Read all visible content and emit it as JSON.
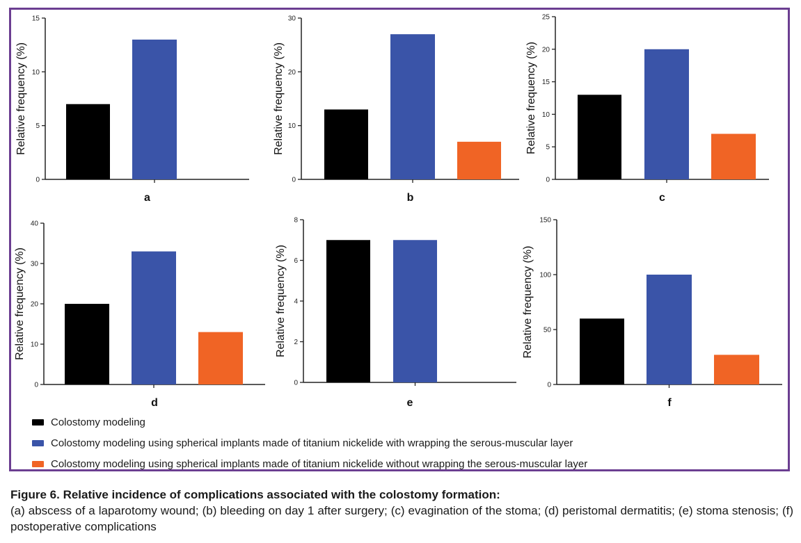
{
  "colors": {
    "frame": "#6b3e91",
    "colostomy": "#000000",
    "with_wrap": "#3a54a8",
    "without_wrap": "#f06425"
  },
  "chart_data": [
    {
      "type": "bar",
      "panel": "a",
      "ylabel": "Relative frequency (%)",
      "xlabel": "a",
      "ylim": [
        0,
        15
      ],
      "yticks": [
        0,
        5,
        10,
        15
      ],
      "categories": [
        "Colostomy modeling",
        "Colostomy modeling using spherical implants made of titanium nickelide with wrapping the serous-muscular layer",
        "Colostomy modeling using spherical implants made of titanium nickelide without wrapping the serous-muscular layer"
      ],
      "values": [
        7,
        13,
        0
      ]
    },
    {
      "type": "bar",
      "panel": "b",
      "ylabel": "Relative frequency (%)",
      "xlabel": "b",
      "ylim": [
        0,
        30
      ],
      "yticks": [
        0,
        10,
        20,
        30
      ],
      "categories": [
        "Colostomy modeling",
        "Colostomy modeling using spherical implants made of titanium nickelide with wrapping the serous-muscular layer",
        "Colostomy modeling using spherical implants made of titanium nickelide without wrapping the serous-muscular layer"
      ],
      "values": [
        13,
        27,
        7
      ]
    },
    {
      "type": "bar",
      "panel": "c",
      "ylabel": "Relative frequency (%)",
      "xlabel": "c",
      "ylim": [
        0,
        25
      ],
      "yticks": [
        0,
        5,
        10,
        15,
        20,
        25
      ],
      "categories": [
        "Colostomy modeling",
        "Colostomy modeling using spherical implants made of titanium nickelide with wrapping the serous-muscular layer",
        "Colostomy modeling using spherical implants made of titanium nickelide without wrapping the serous-muscular layer"
      ],
      "values": [
        13,
        20,
        7
      ]
    },
    {
      "type": "bar",
      "panel": "d",
      "ylabel": "Relative frequency (%)",
      "xlabel": "d",
      "ylim": [
        0,
        40
      ],
      "yticks": [
        0,
        10,
        20,
        30,
        40
      ],
      "categories": [
        "Colostomy modeling",
        "Colostomy modeling using spherical implants made of titanium nickelide with wrapping the serous-muscular layer",
        "Colostomy modeling using spherical implants made of titanium nickelide without wrapping the serous-muscular layer"
      ],
      "values": [
        20,
        33,
        13
      ]
    },
    {
      "type": "bar",
      "panel": "e",
      "ylabel": "Relative frequency (%)",
      "xlabel": "e",
      "ylim": [
        0,
        8
      ],
      "yticks": [
        0,
        2,
        4,
        6,
        8
      ],
      "categories": [
        "Colostomy modeling",
        "Colostomy modeling using spherical implants made of titanium nickelide with wrapping the serous-muscular layer",
        "Colostomy modeling using spherical implants made of titanium nickelide without wrapping the serous-muscular layer"
      ],
      "values": [
        7,
        7,
        0
      ]
    },
    {
      "type": "bar",
      "panel": "f",
      "ylabel": "Relative frequency (%)",
      "xlabel": "f",
      "ylim": [
        0,
        150
      ],
      "yticks": [
        0,
        50,
        100,
        150
      ],
      "categories": [
        "Colostomy modeling",
        "Colostomy modeling using spherical implants made of titanium nickelide with wrapping the serous-muscular layer",
        "Colostomy modeling using spherical implants made of titanium nickelide without wrapping the serous-muscular layer"
      ],
      "values": [
        60,
        100,
        27
      ]
    }
  ],
  "legend": [
    {
      "label": "Colostomy modeling",
      "color": "#000000"
    },
    {
      "label": "Colostomy modeling using spherical implants made of titanium nickelide with wrapping the serous-muscular layer",
      "color": "#3a54a8"
    },
    {
      "label": "Colostomy modeling using spherical implants made of titanium nickelide without wrapping the serous-muscular layer",
      "color": "#f06425"
    }
  ],
  "caption": {
    "title": "Figure 6. Relative incidence of complications associated with the colostomy formation:",
    "body": "(a) abscess of a laparotomy wound; (b) bleeding on day 1 after surgery; (c) evagination of the stoma; (d) peristomal dermatitis; (e) stoma stenosis; (f) postoperative complications"
  }
}
